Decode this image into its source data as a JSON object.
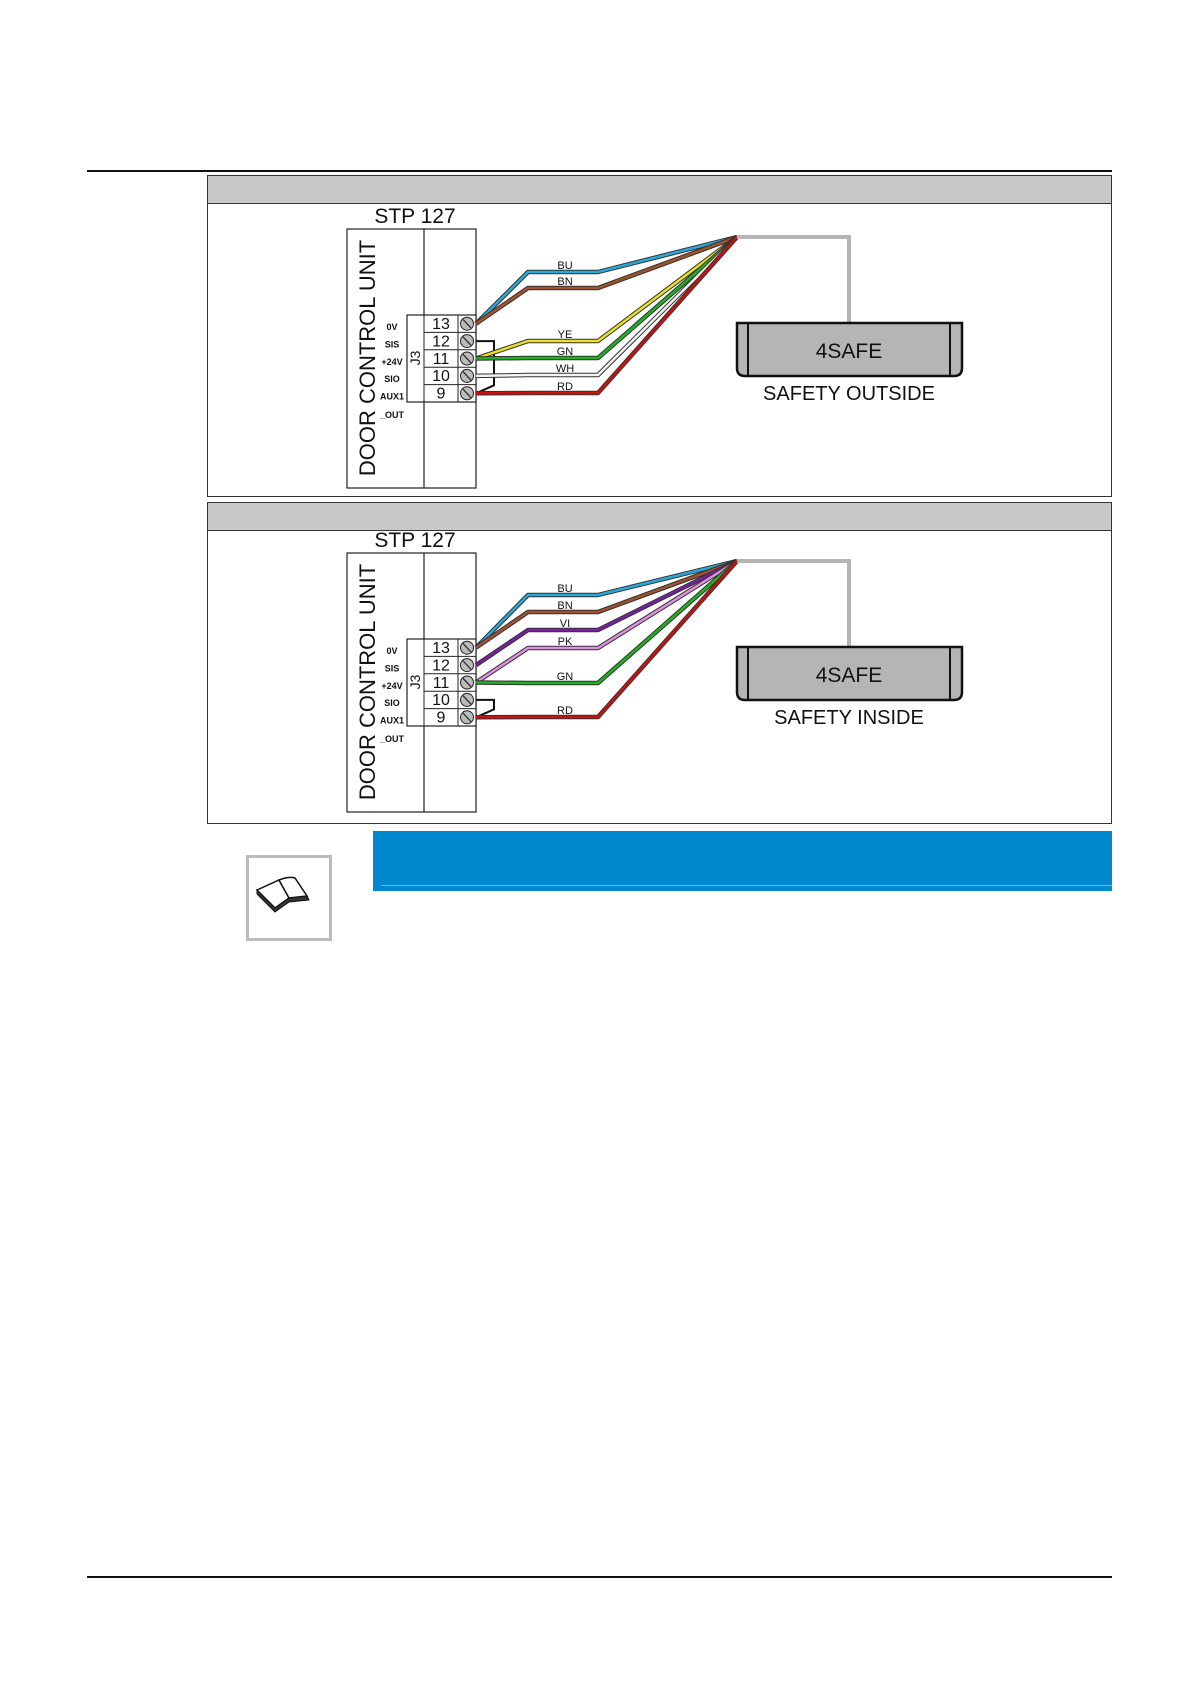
{
  "panels": [
    {
      "controller_title": "STP 127",
      "unit_label": "DOOR CONTROL UNIT",
      "connector": "J3",
      "terminals": [
        "13",
        "12",
        "11",
        "10",
        "9"
      ],
      "signals": [
        "0V",
        "SIS",
        "+24V",
        "SIO",
        "AUX1",
        "_OUT"
      ],
      "wires": [
        {
          "label": "BU",
          "color": "#2aa8d8",
          "terminal": "13"
        },
        {
          "label": "BN",
          "color": "#a0522d",
          "terminal": "13"
        },
        {
          "label": "YE",
          "color": "#e8e020",
          "terminal": "11"
        },
        {
          "label": "GN",
          "color": "#22b022",
          "terminal": "11"
        },
        {
          "label": "WH",
          "color": "#f4f4f4",
          "terminal": "10"
        },
        {
          "label": "RD",
          "color": "#cc1010",
          "terminal": "9"
        }
      ],
      "jumper": [
        "12",
        "9"
      ],
      "device_name": "4SAFE",
      "device_caption": "SAFETY OUTSIDE"
    },
    {
      "controller_title": "STP 127",
      "unit_label": "DOOR CONTROL UNIT",
      "connector": "J3",
      "terminals": [
        "13",
        "12",
        "11",
        "10",
        "9"
      ],
      "signals": [
        "0V",
        "SIS",
        "+24V",
        "SIO",
        "AUX1",
        "_OUT"
      ],
      "wires": [
        {
          "label": "BU",
          "color": "#2aa8d8",
          "terminal": "13"
        },
        {
          "label": "BN",
          "color": "#a0522d",
          "terminal": "13"
        },
        {
          "label": "VI",
          "color": "#7a1fa0",
          "terminal": "12"
        },
        {
          "label": "PK",
          "color": "#e090e0",
          "terminal": "11"
        },
        {
          "label": "GN",
          "color": "#22b022",
          "terminal": "11"
        },
        {
          "label": "RD",
          "color": "#cc1010",
          "terminal": "9"
        }
      ],
      "jumper": [
        "10",
        "9"
      ],
      "device_name": "4SAFE",
      "device_caption": "SAFETY INSIDE"
    }
  ],
  "note": {
    "icon": "open-book-icon",
    "bar_color": "#0088cf"
  }
}
